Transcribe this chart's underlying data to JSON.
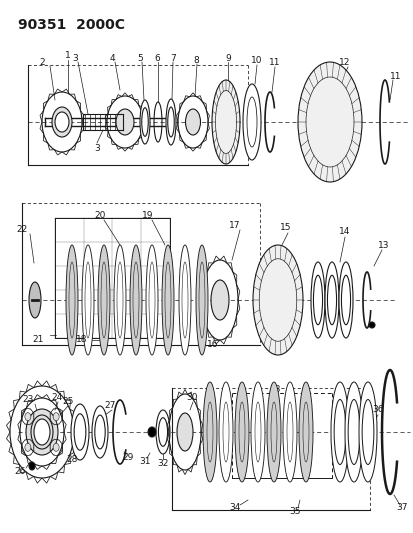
{
  "title": "90351  2000C",
  "bg_color": "#ffffff",
  "line_color": "#1a1a1a",
  "title_fontsize": 10,
  "label_fontsize": 6.5,
  "figsize": [
    4.14,
    5.33
  ],
  "dpi": 100
}
